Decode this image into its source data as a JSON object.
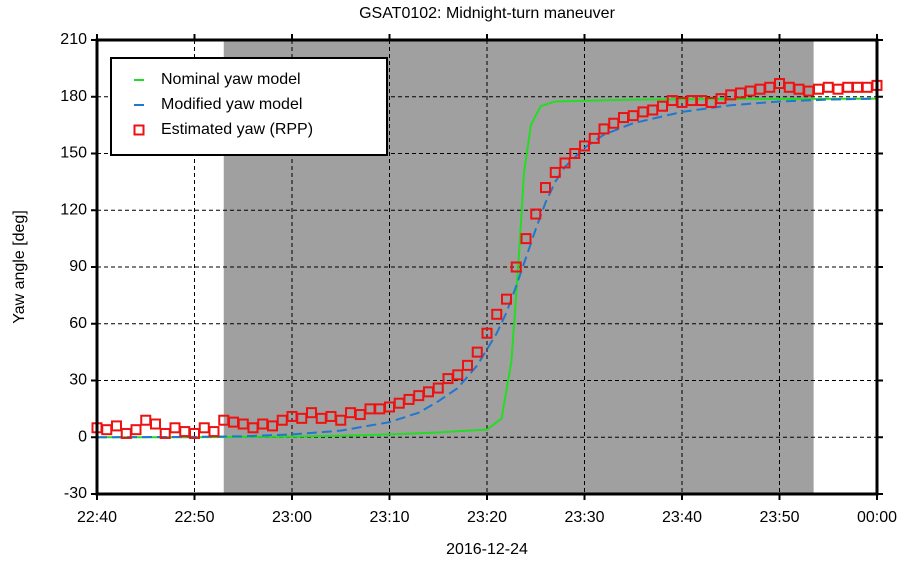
{
  "chart_data": {
    "type": "line",
    "title": "GSAT0102: Midnight-turn maneuver",
    "xlabel": "2016-12-24",
    "ylabel": "Yaw angle [deg]",
    "xlim": [
      0,
      80
    ],
    "xticks": [
      {
        "value": 0,
        "label": "22:40"
      },
      {
        "value": 10,
        "label": "22:50"
      },
      {
        "value": 20,
        "label": "23:00"
      },
      {
        "value": 30,
        "label": "23:10"
      },
      {
        "value": 40,
        "label": "23:20"
      },
      {
        "value": 50,
        "label": "23:30"
      },
      {
        "value": 60,
        "label": "23:40"
      },
      {
        "value": 70,
        "label": "23:50"
      },
      {
        "value": 80,
        "label": "00:00"
      }
    ],
    "ylim": [
      -30,
      210
    ],
    "yticks": [
      -30,
      0,
      30,
      60,
      90,
      120,
      150,
      180,
      210
    ],
    "grid": true,
    "legend": "upper left",
    "shaded_span": {
      "x": [
        13,
        73.5
      ],
      "color": "#a0a0a0"
    },
    "series": [
      {
        "name": "Nominal yaw model",
        "color": "#22dd22",
        "style": "solid",
        "x": [
          0,
          10,
          20,
          25,
          30,
          35,
          38,
          40,
          41.5,
          42.5,
          43.2,
          43.8,
          44.5,
          45.5,
          47,
          55,
          65,
          80
        ],
        "values": [
          0,
          0,
          0.3,
          0.8,
          1.5,
          2.5,
          3.5,
          4,
          10,
          40,
          90,
          140,
          165,
          175,
          177.5,
          178.5,
          178.8,
          179
        ]
      },
      {
        "name": "Modified yaw model",
        "color": "#1f77d0",
        "style": "dashed",
        "x": [
          0,
          10,
          15,
          20,
          25,
          30,
          33,
          35,
          37,
          39,
          41,
          42,
          43,
          44,
          45,
          46,
          47,
          48,
          50,
          52,
          55,
          60,
          65,
          70,
          75,
          80
        ],
        "values": [
          0,
          0.2,
          0.5,
          1.5,
          3.5,
          8,
          13,
          19,
          26,
          38,
          55,
          66,
          80,
          95,
          110,
          124,
          135,
          143,
          153,
          160,
          166,
          172,
          175.5,
          177.5,
          178.5,
          179
        ]
      },
      {
        "name": "Estimated yaw (RPP)",
        "color": "#ee1111",
        "style": "square",
        "x": [
          0,
          1,
          2,
          3,
          4,
          5,
          6,
          7,
          8,
          9,
          10,
          11,
          12,
          13,
          14,
          15,
          16,
          17,
          18,
          19,
          20,
          21,
          22,
          23,
          24,
          25,
          26,
          27,
          28,
          29,
          30,
          31,
          32,
          33,
          34,
          35,
          36,
          37,
          38,
          39,
          40,
          41,
          42,
          43,
          44,
          45,
          46,
          47,
          48,
          49,
          50,
          51,
          52,
          53,
          54,
          55,
          56,
          57,
          58,
          59,
          60,
          61,
          62,
          63,
          64,
          65,
          66,
          67,
          68,
          69,
          70,
          71,
          72,
          73,
          74,
          75,
          76,
          77,
          78,
          79,
          80
        ],
        "values": [
          5,
          4,
          6,
          2,
          4,
          9,
          7,
          2,
          5,
          3,
          2,
          5,
          3,
          9,
          8,
          7,
          5,
          7,
          6,
          9,
          11,
          10,
          13,
          10,
          11,
          9,
          13,
          12,
          15,
          15,
          16,
          18,
          20,
          22,
          24,
          26,
          31,
          33,
          38,
          45,
          55,
          65,
          73,
          90,
          105,
          118,
          132,
          140,
          145,
          150,
          154,
          158,
          163,
          166,
          169,
          170,
          172,
          173,
          175,
          178,
          177,
          178,
          178,
          177,
          179,
          181,
          182,
          183,
          184,
          185,
          187,
          185,
          184,
          183,
          184,
          185,
          184,
          185,
          185,
          185,
          186
        ]
      }
    ]
  }
}
